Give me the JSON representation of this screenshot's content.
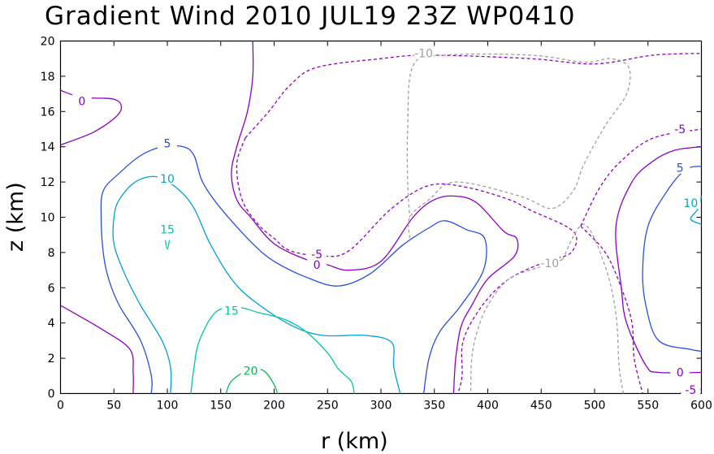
{
  "chart_data": {
    "type": "contour",
    "title": "Gradient Wind 2010 JUL19 23Z  WP0410",
    "xlabel": "r (km)",
    "ylabel": "z (km)",
    "xlim": [
      0,
      600
    ],
    "ylim": [
      0,
      20
    ],
    "xticks": [
      0,
      50,
      100,
      150,
      200,
      250,
      300,
      350,
      400,
      450,
      500,
      550,
      600
    ],
    "yticks": [
      0,
      2,
      4,
      6,
      8,
      10,
      12,
      14,
      16,
      18,
      20
    ],
    "levels": [
      {
        "value": -10,
        "color": "#a0a0a0",
        "dashed": true
      },
      {
        "value": -5,
        "color": "#8c00c8",
        "dashed": true
      },
      {
        "value": 0,
        "color": "#8c00c8",
        "dashed": false
      },
      {
        "value": 5,
        "color": "#2850dc",
        "dashed": false
      },
      {
        "value": 10,
        "color": "#00a0dc",
        "dashed": false
      },
      {
        "value": 15,
        "color": "#00c8a0",
        "dashed": false
      },
      {
        "value": 20,
        "color": "#00c050",
        "dashed": false
      }
    ],
    "contours": [
      {
        "level": 0,
        "label": "0",
        "label_at": [
          20,
          16.6
        ],
        "points": [
          [
            0,
            14.1
          ],
          [
            30,
            14.8
          ],
          [
            50,
            15.6
          ],
          [
            57,
            16.2
          ],
          [
            50,
            16.7
          ],
          [
            20,
            16.8
          ],
          [
            0,
            17.2
          ]
        ]
      },
      {
        "level": 0,
        "label": "",
        "points": [
          [
            0,
            5
          ],
          [
            40,
            3.6
          ],
          [
            65,
            2.5
          ],
          [
            68,
            1.2
          ],
          [
            68,
            0
          ]
        ]
      },
      {
        "level": 5,
        "label": "5",
        "label_at": [
          100,
          14.2
        ],
        "points": [
          [
            85,
            0
          ],
          [
            85,
            1
          ],
          [
            75,
            3
          ],
          [
            55,
            5
          ],
          [
            45,
            6.5
          ],
          [
            40,
            8
          ],
          [
            38,
            10
          ],
          [
            40,
            11.5
          ],
          [
            55,
            12.5
          ],
          [
            75,
            13.5
          ],
          [
            95,
            14
          ],
          [
            115,
            14
          ],
          [
            125,
            13.5
          ],
          [
            133,
            12
          ],
          [
            150,
            10.5
          ],
          [
            180,
            8.5
          ],
          [
            200,
            7.5
          ],
          [
            230,
            6.6
          ],
          [
            260,
            6.1
          ],
          [
            290,
            6.8
          ],
          [
            320,
            8.4
          ],
          [
            345,
            9.4
          ],
          [
            360,
            9.8
          ],
          [
            380,
            9.3
          ],
          [
            397,
            8.8
          ],
          [
            396,
            7
          ],
          [
            375,
            5
          ],
          [
            355,
            3.5
          ],
          [
            345,
            2
          ],
          [
            340,
            0
          ]
        ]
      },
      {
        "level": 10,
        "label": "10",
        "label_at": [
          100,
          12.2
        ],
        "points": [
          [
            103,
            0
          ],
          [
            103,
            1.5
          ],
          [
            95,
            3
          ],
          [
            75,
            5
          ],
          [
            60,
            6.8
          ],
          [
            50,
            8.5
          ],
          [
            50,
            10
          ],
          [
            55,
            11
          ],
          [
            70,
            12
          ],
          [
            90,
            12.3
          ],
          [
            110,
            11.6
          ],
          [
            125,
            10.5
          ],
          [
            140,
            8.5
          ],
          [
            160,
            6.5
          ],
          [
            180,
            5.3
          ],
          [
            215,
            3.9
          ],
          [
            245,
            3.3
          ],
          [
            285,
            3.3
          ],
          [
            310,
            2.9
          ],
          [
            312,
            1.5
          ],
          [
            318,
            0
          ]
        ]
      },
      {
        "level": 15,
        "label": "15",
        "label_at": [
          100,
          9.3
        ],
        "points": [
          [
            98,
            8.7
          ],
          [
            100,
            8.2
          ],
          [
            102,
            8.7
          ]
        ]
      },
      {
        "level": 15,
        "label": "15",
        "label_at": [
          160,
          4.7
        ],
        "points": [
          [
            122,
            0
          ],
          [
            125,
            1.5
          ],
          [
            130,
            3
          ],
          [
            145,
            4.6
          ],
          [
            165,
            4.9
          ],
          [
            185,
            4.6
          ],
          [
            210,
            4.2
          ],
          [
            230,
            3.5
          ],
          [
            250,
            2.3
          ],
          [
            260,
            1.4
          ],
          [
            272,
            0.7
          ],
          [
            275,
            0
          ]
        ]
      },
      {
        "level": 20,
        "label": "20",
        "label_at": [
          178,
          1.3
        ],
        "points": [
          [
            155,
            0
          ],
          [
            160,
            0.7
          ],
          [
            175,
            1.3
          ],
          [
            190,
            1.3
          ],
          [
            200,
            0.5
          ],
          [
            203,
            0
          ]
        ]
      },
      {
        "level": 0,
        "label": "0",
        "label_at": [
          240,
          7.3
        ],
        "points": [
          [
            180,
            20
          ],
          [
            180,
            18
          ],
          [
            175,
            16
          ],
          [
            165,
            14
          ],
          [
            160,
            12.5
          ],
          [
            165,
            11
          ],
          [
            178,
            10
          ],
          [
            200,
            8.5
          ],
          [
            230,
            7.6
          ],
          [
            250,
            7.3
          ],
          [
            270,
            7
          ],
          [
            300,
            7.5
          ],
          [
            330,
            10
          ],
          [
            350,
            11
          ],
          [
            370,
            11.2
          ],
          [
            390,
            10.8
          ],
          [
            415,
            9.2
          ],
          [
            427,
            8.8
          ],
          [
            425,
            7.8
          ],
          [
            400,
            6.5
          ],
          [
            385,
            5
          ],
          [
            375,
            3.8
          ],
          [
            370,
            2
          ],
          [
            368,
            0
          ]
        ]
      },
      {
        "level": -5,
        "label": "-5",
        "label_at": [
          240,
          7.9
        ],
        "points": [
          [
            173,
            14.5
          ],
          [
            195,
            16
          ],
          [
            215,
            17.5
          ],
          [
            240,
            18.5
          ],
          [
            300,
            19
          ],
          [
            345,
            19.2
          ],
          [
            440,
            19
          ],
          [
            500,
            18.7
          ],
          [
            555,
            19.2
          ],
          [
            600,
            19.3
          ]
        ]
      },
      {
        "level": -5,
        "label": "",
        "points": [
          [
            173,
            14.5
          ],
          [
            165,
            13
          ],
          [
            170,
            11
          ],
          [
            185,
            9.6
          ],
          [
            200,
            8.8
          ],
          [
            215,
            8.1
          ],
          [
            245,
            7.8
          ],
          [
            270,
            8.1
          ],
          [
            310,
            10.5
          ],
          [
            345,
            11.8
          ],
          [
            380,
            11.7
          ],
          [
            420,
            11
          ],
          [
            440,
            10.4
          ],
          [
            480,
            9.2
          ],
          [
            478,
            8
          ],
          [
            455,
            7.5
          ],
          [
            420,
            6.5
          ],
          [
            395,
            5
          ],
          [
            377,
            3
          ],
          [
            376,
            1
          ],
          [
            372,
            0
          ]
        ]
      },
      {
        "level": -10,
        "label": "-10",
        "label_at": [
          340,
          19.3
        ],
        "points": [
          [
            327,
            8.8
          ],
          [
            327,
            10
          ],
          [
            345,
            11
          ],
          [
            370,
            12
          ],
          [
            430,
            11.2
          ],
          [
            460,
            10.5
          ],
          [
            480,
            11.5
          ],
          [
            490,
            13
          ],
          [
            510,
            15.2
          ],
          [
            530,
            17
          ],
          [
            532,
            18.5
          ],
          [
            515,
            19
          ],
          [
            490,
            18.8
          ],
          [
            440,
            19.2
          ],
          [
            360,
            19.2
          ],
          [
            330,
            18.6
          ],
          [
            325,
            15
          ],
          [
            325,
            12
          ],
          [
            327,
            10
          ]
        ]
      },
      {
        "level": -10,
        "label": "-10",
        "label_at": [
          458,
          7.4
        ],
        "points": [
          [
            470,
            7.6
          ],
          [
            450,
            7.2
          ],
          [
            420,
            6.5
          ],
          [
            400,
            5
          ],
          [
            390,
            3.5
          ],
          [
            385,
            2
          ],
          [
            384,
            0
          ]
        ]
      },
      {
        "level": -10,
        "label": "",
        "points": [
          [
            470,
            7.6
          ],
          [
            490,
            9.6
          ],
          [
            510,
            7.2
          ],
          [
            520,
            4.5
          ],
          [
            523,
            1.5
          ],
          [
            527,
            0
          ]
        ]
      },
      {
        "level": -5,
        "label": "-5",
        "label_at": [
          580,
          15
        ],
        "points": [
          [
            487,
            9.5
          ],
          [
            505,
            11.7
          ],
          [
            525,
            13.2
          ],
          [
            555,
            14.5
          ],
          [
            600,
            15
          ]
        ]
      },
      {
        "level": -5,
        "label": "",
        "points": [
          [
            487,
            9.5
          ],
          [
            510,
            8
          ],
          [
            525,
            6
          ],
          [
            535,
            4
          ],
          [
            537,
            2
          ],
          [
            545,
            0
          ]
        ]
      },
      {
        "level": -5,
        "label": "-5",
        "label_at": [
          590,
          0.2
        ],
        "points": [
          [
            600,
            0.2
          ],
          [
            590,
            0.4
          ],
          [
            580,
            0
          ]
        ]
      },
      {
        "level": 0,
        "label": "0",
        "label_at": [
          580,
          1.2
        ],
        "points": [
          [
            600,
            14
          ],
          [
            575,
            13.8
          ],
          [
            555,
            13.2
          ],
          [
            535,
            12
          ],
          [
            520,
            9.5
          ],
          [
            525,
            6
          ],
          [
            530,
            4
          ],
          [
            548,
            1.6
          ],
          [
            560,
            1.2
          ],
          [
            600,
            1.2
          ]
        ]
      },
      {
        "level": 5,
        "label": "5",
        "label_at": [
          580,
          12.8
        ],
        "points": [
          [
            600,
            12.9
          ],
          [
            585,
            12.7
          ],
          [
            568,
            11.5
          ],
          [
            550,
            9.5
          ],
          [
            545,
            7
          ],
          [
            548,
            5
          ],
          [
            560,
            3
          ],
          [
            590,
            2.5
          ],
          [
            600,
            2.4
          ]
        ]
      },
      {
        "level": 10,
        "label": "10",
        "label_at": [
          590,
          10.8
        ],
        "points": [
          [
            600,
            11.2
          ],
          [
            597,
            10.5
          ],
          [
            590,
            9.9
          ],
          [
            600,
            9.6
          ]
        ]
      }
    ]
  }
}
